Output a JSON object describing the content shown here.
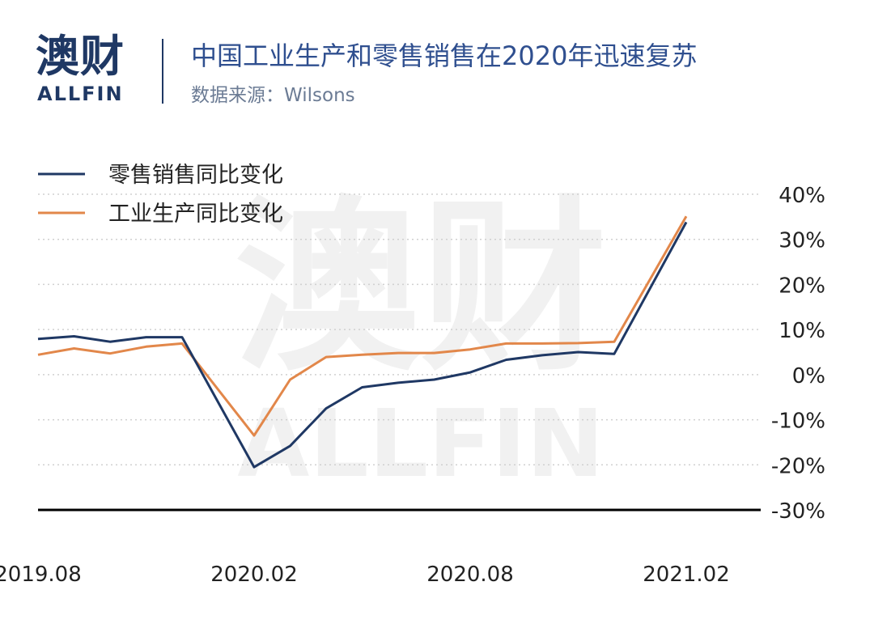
{
  "header": {
    "logo_cn": "澳财",
    "logo_en": "ALLFIN",
    "title": "中国工业生产和零售销售在2020年迅速复苏",
    "source": "数据来源：Wilsons"
  },
  "watermark": {
    "cn": "澳财",
    "en": "ALLFIN"
  },
  "colors": {
    "retail": "#1f3864",
    "industrial": "#e2874a",
    "grid": "#d0d0d0",
    "axis": "#000000"
  },
  "chart_data": {
    "type": "line",
    "x": [
      "2019.08",
      "2019.09",
      "2019.10",
      "2019.11",
      "2019.12",
      "2020.01",
      "2020.02",
      "2020.03",
      "2020.04",
      "2020.05",
      "2020.06",
      "2020.07",
      "2020.08",
      "2020.09",
      "2020.10",
      "2020.11",
      "2020.12",
      "2021.01",
      "2021.02"
    ],
    "x_tick_labels": [
      "2019.08",
      "2020.02",
      "2020.08",
      "2021.02"
    ],
    "series": [
      {
        "name": "零售销售同比变化",
        "color": "#1f3864",
        "values": [
          7.9,
          8.5,
          7.3,
          8.3,
          8.3,
          null,
          -20.5,
          -15.8,
          -7.5,
          -2.8,
          -1.8,
          -1.1,
          0.5,
          3.3,
          4.3,
          5.0,
          4.6,
          null,
          33.8
        ]
      },
      {
        "name": "工业生产同比变化",
        "color": "#e2874a",
        "values": [
          4.4,
          5.8,
          4.7,
          6.2,
          6.9,
          null,
          -13.5,
          -1.1,
          3.9,
          4.4,
          4.8,
          4.8,
          5.6,
          6.9,
          6.9,
          7.0,
          7.3,
          null,
          35.1
        ]
      }
    ],
    "y_ticks": [
      "40%",
      "30%",
      "20%",
      "10%",
      "0%",
      "-10%",
      "-20%",
      "-30%"
    ],
    "ylim": [
      -30,
      40
    ],
    "grid": true,
    "legend": "top-left",
    "y_axis_side": "right"
  }
}
